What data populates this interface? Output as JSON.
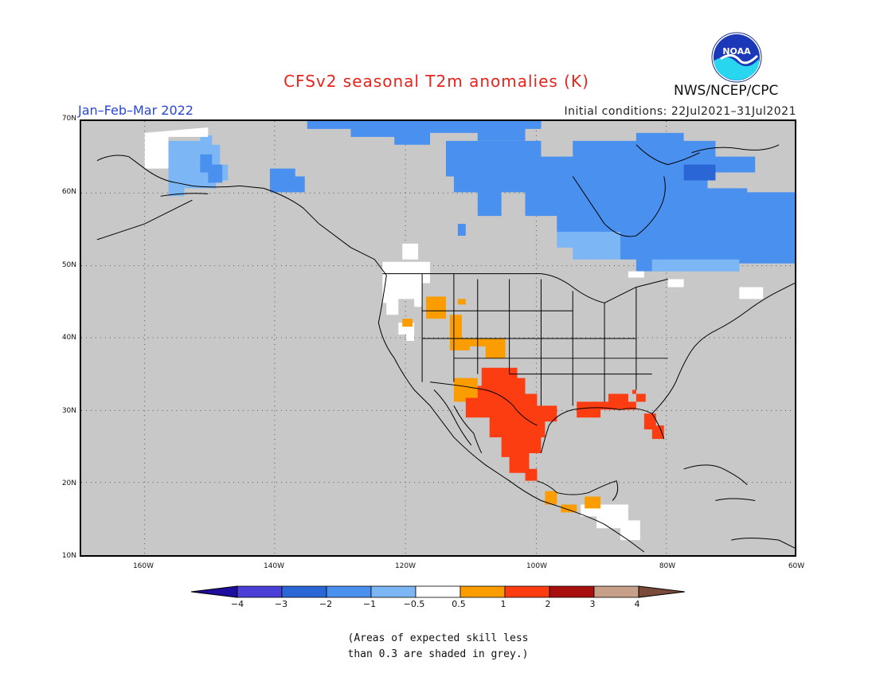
{
  "title": "CFSv2 seasonal T2m anomalies (K)",
  "season": "Jan–Feb–Mar 2022",
  "initial_conditions": "Initial conditions: 22Jul2021–31Jul2021",
  "agency": "NWS/NCEP/CPC",
  "logo_text": "NOAA",
  "lat_labels": [
    "70N",
    "60N",
    "50N",
    "40N",
    "30N",
    "20N",
    "10N"
  ],
  "lon_labels": [
    "160W",
    "140W",
    "120W",
    "100W",
    "80W",
    "60W"
  ],
  "colorbar": {
    "ticks": [
      "−4",
      "−3",
      "−2",
      "−1",
      "−0.5",
      "0.5",
      "1",
      "2",
      "3",
      "4"
    ],
    "colors": [
      "#1e0ea0",
      "#4a3fd6",
      "#2a66d6",
      "#4a90ee",
      "#7cb6f4",
      "#ffffff",
      "#fb9d00",
      "#fc3d12",
      "#a80f0f",
      "#c6a088",
      "#7a4a3a"
    ]
  },
  "note_lines": [
    "(Areas of expected skill less",
    "than 0.3 are shaded in grey.)"
  ]
}
